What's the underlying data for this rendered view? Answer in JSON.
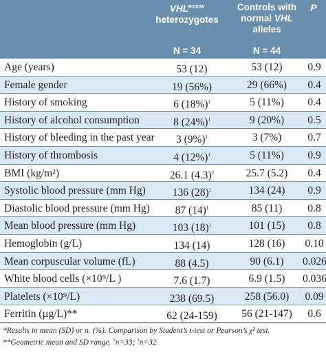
{
  "header": {
    "col1_prefix": "VHL",
    "col1_sup": "R200W",
    "col1_line2": "heterozygotes",
    "col1_n": "N = 34",
    "col2_line1_a": "Controls with",
    "col2_line2_a": "normal ",
    "col2_line2_b": "VHL",
    "col2_line3": "alleles",
    "col2_n": "N = 44",
    "col3": "P"
  },
  "rows": [
    {
      "label": "Age (years)",
      "v1": "53 (12)",
      "v1_sup": "",
      "v2": "53 (12)",
      "p": "0.9"
    },
    {
      "label": "Female gender",
      "v1": "19 (56%)",
      "v1_sup": "",
      "v2": "29 (66%)",
      "p": "0.4"
    },
    {
      "label": "History of smoking",
      "v1": "6 (18%)",
      "v1_sup": "1",
      "v2": "5 (11%)",
      "p": "0.4"
    },
    {
      "label": "History of alcohol consumption",
      "v1": "8 (24%)",
      "v1_sup": "1",
      "v2": "9 (20%)",
      "p": "0.5"
    },
    {
      "label": "History of bleeding in the past year",
      "v1": "3 (9%)",
      "v1_sup": "1",
      "v2": "3 (7%)",
      "p": "0.7"
    },
    {
      "label": "History of thrombosis",
      "v1": "4 (12%)",
      "v1_sup": "1",
      "v2": "5 (11%)",
      "p": "0.9"
    },
    {
      "label": "BMI (kg/m²)",
      "v1": "26.1 (4.3)",
      "v1_sup": "2",
      "v2": "25.7 (5.2)",
      "p": "0.4"
    },
    {
      "label": "Systolic blood pressure (mm Hg)",
      "v1": "136 (28)",
      "v1_sup": "1",
      "v2": "134 (24)",
      "p": "0.9"
    },
    {
      "label": "Diastolic blood pressure (mm Hg)",
      "v1": "87 (14)",
      "v1_sup": "1",
      "v2": "85 (11)",
      "p": "0.8"
    },
    {
      "label": "Mean blood pressure (mm Hg)",
      "v1": "103 (18)",
      "v1_sup": "1",
      "v2": "101 (15)",
      "p": "0.8"
    },
    {
      "label": "Hemoglobin (g/L)",
      "v1": "134 (14)",
      "v1_sup": "",
      "v2": "128 (16)",
      "p": "0.10"
    },
    {
      "label": "Mean corpuscular volume (fL)",
      "v1": "88 (4.5)",
      "v1_sup": "",
      "v2": "90 (6.1)",
      "p": "0.026"
    },
    {
      "label": "White blood cells (×10⁹/L )",
      "v1": "7.6 (1.7)",
      "v1_sup": "",
      "v2": "6.9 (1.5)",
      "p": "0.036"
    },
    {
      "label": "Platelets (×10⁹/L)",
      "v1": "238 (69.5)",
      "v1_sup": "",
      "v2": "258 (56.0)",
      "p": "0.09"
    },
    {
      "label": "Ferritin (µg/L)**",
      "v1": "62 (24-159)",
      "v1_sup": "",
      "v2": "56 (21-147)",
      "p": "0.6"
    }
  ],
  "footnote": {
    "line1": "*Results in mean (SD) or n. (%). Comparison by Student’s t-test or Pearson’s χ² test.",
    "line2_a": "**Geometric mean and SD range. ",
    "sup1": "1",
    "line2_b": "n=33; ",
    "sup2": "2",
    "line2_c": "n=32"
  }
}
